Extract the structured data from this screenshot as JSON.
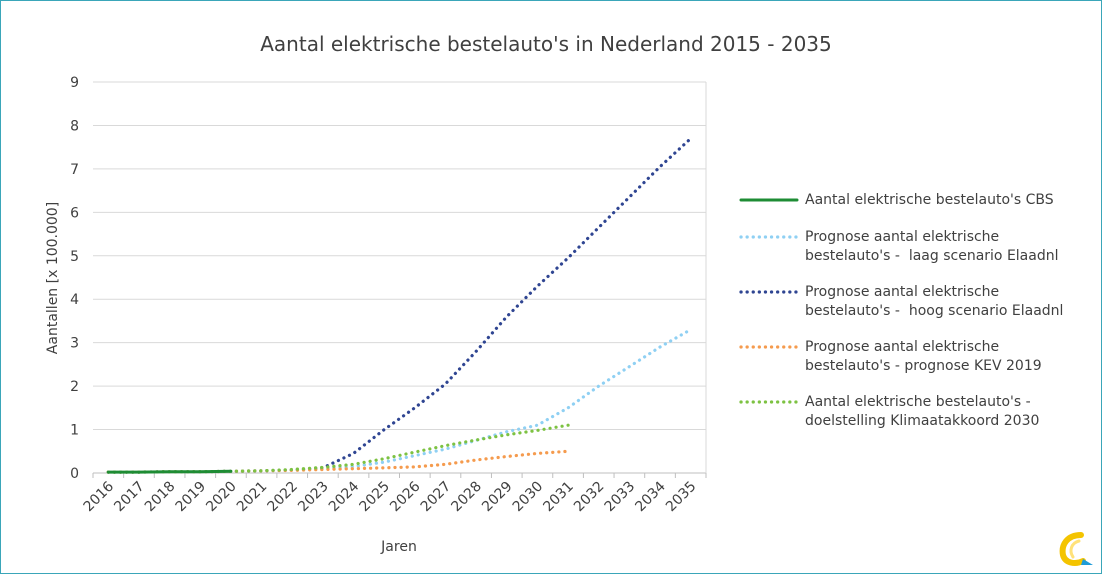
{
  "chart_data": {
    "type": "line",
    "title": "Aantal elektrische bestelauto's in Nederland 2015 - 2035",
    "xlabel": "Jaren",
    "ylabel": "Aantallen [x 100.000]",
    "categories": [
      "2016",
      "2017",
      "2018",
      "2019",
      "2020",
      "2021",
      "2022",
      "2023",
      "2024",
      "2025",
      "2026",
      "2027",
      "2028",
      "2029",
      "2030",
      "2031",
      "2032",
      "2033",
      "2034",
      "2035"
    ],
    "ylim": [
      0,
      9
    ],
    "yticks": [
      "0",
      "1",
      "2",
      "3",
      "4",
      "5",
      "6",
      "7",
      "8",
      "9"
    ],
    "grid": true,
    "legend_position": "right",
    "series": [
      {
        "name": "Aantal elektrische bestelauto's CBS",
        "color": "#1e8c34",
        "style": "solid",
        "values": [
          0.02,
          0.02,
          0.03,
          0.03,
          0.04,
          null,
          null,
          null,
          null,
          null,
          null,
          null,
          null,
          null,
          null,
          null,
          null,
          null,
          null,
          null
        ]
      },
      {
        "name": "Prognose aantal elektrische bestelauto's -  laag scenario Elaadnl",
        "color": "#8fd0f3",
        "style": "dotted",
        "values": [
          0.02,
          0.02,
          0.03,
          0.03,
          0.04,
          0.05,
          0.07,
          0.1,
          0.15,
          0.25,
          0.4,
          0.55,
          0.75,
          0.95,
          1.1,
          1.5,
          2.0,
          2.45,
          2.9,
          3.3
        ]
      },
      {
        "name": "Prognose aantal elektrische bestelauto's -  hoog scenario Elaadnl",
        "color": "#2f4592",
        "style": "dotted",
        "values": [
          0.02,
          0.02,
          0.03,
          0.03,
          0.04,
          0.05,
          0.07,
          0.12,
          0.45,
          1.0,
          1.5,
          2.05,
          2.8,
          3.6,
          4.3,
          4.95,
          5.65,
          6.35,
          7.05,
          7.7
        ]
      },
      {
        "name": "Prognose aantal elektrische bestelauto's - prognose KEV 2019",
        "color": "#f59b4e",
        "style": "dotted",
        "values": [
          0.02,
          0.02,
          0.03,
          0.03,
          0.04,
          0.05,
          0.06,
          0.08,
          0.1,
          0.12,
          0.14,
          0.2,
          0.3,
          0.38,
          0.45,
          0.5,
          null,
          null,
          null,
          null
        ]
      },
      {
        "name": "Aantal elektrische bestelauto's - doelstelling Klimaatakkoord 2030",
        "color": "#7dc242",
        "style": "dotted",
        "values": [
          0.02,
          0.02,
          0.03,
          0.03,
          0.04,
          0.05,
          0.08,
          0.13,
          0.2,
          0.33,
          0.48,
          0.63,
          0.76,
          0.88,
          0.98,
          1.1,
          null,
          null,
          null,
          null
        ]
      }
    ],
    "legend_labels": [
      [
        "Aantal elektrische bestelauto's CBS"
      ],
      [
        "Prognose aantal elektrische",
        "bestelauto's -  laag scenario Elaadnl"
      ],
      [
        "Prognose aantal elektrische",
        "bestelauto's -  hoog scenario Elaadnl"
      ],
      [
        "Prognose aantal elektrische",
        "bestelauto's - prognose KEV 2019"
      ],
      [
        "Aantal elektrische bestelauto's -",
        "doelstelling Klimaatakkoord 2030"
      ]
    ]
  },
  "colors": {
    "frame_border": "#3aa6b9",
    "grid": "#d9d9d9",
    "text": "#404040"
  },
  "icons": {
    "logo": "elaad-logo-icon"
  }
}
